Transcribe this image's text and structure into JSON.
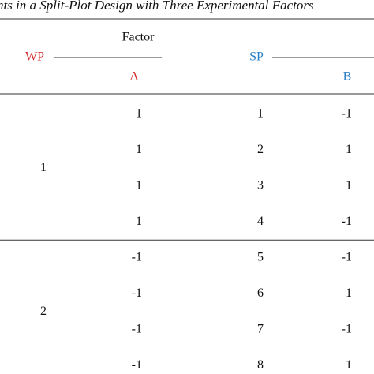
{
  "title": "nts in a Split-Plot Design with Three Experimental Factors",
  "header": {
    "wp": "WP",
    "factor": "Factor",
    "a": "A",
    "sp": "SP",
    "b": "B"
  },
  "groups": [
    {
      "wp": 1,
      "rows": [
        [
          1,
          1,
          -1
        ],
        [
          1,
          2,
          1
        ],
        [
          1,
          3,
          1
        ],
        [
          1,
          4,
          -1
        ]
      ]
    },
    {
      "wp": 2,
      "rows": [
        [
          -1,
          5,
          -1
        ],
        [
          -1,
          6,
          1
        ],
        [
          -1,
          7,
          -1
        ],
        [
          -1,
          8,
          1
        ]
      ]
    }
  ]
}
